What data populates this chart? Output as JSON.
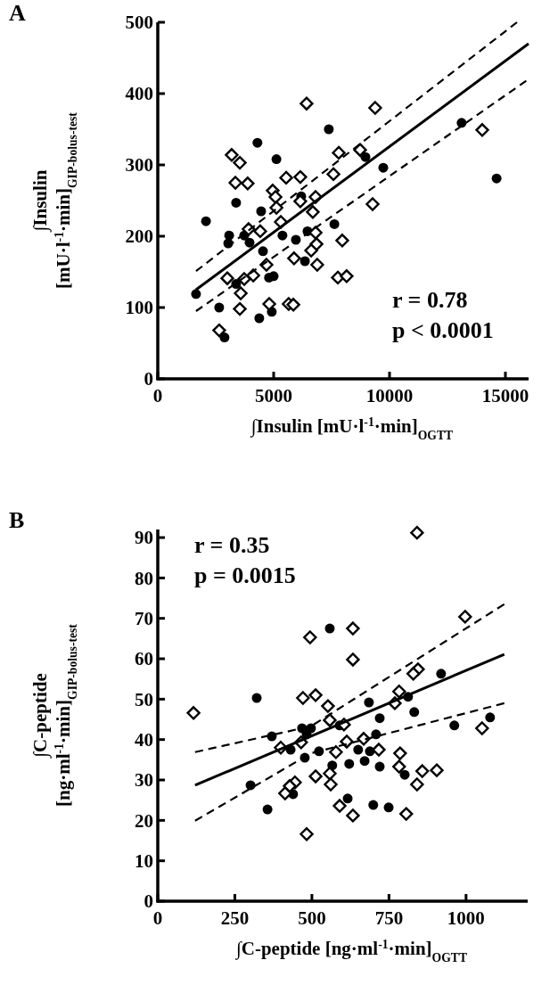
{
  "chart_data": [
    {
      "type": "scatter",
      "title": "A",
      "xlabel": "∫Insulin [mU·l$^{-1}$·min]$_{OGTT}$",
      "ylabel": "∫Insulin\n[mU·l$^{-1}$·min]$_{GIP-bolus-test}$",
      "xlim": [
        0,
        16000
      ],
      "ylim": [
        0,
        500
      ],
      "xticks": [
        0,
        5000,
        10000,
        15000
      ],
      "yticks": [
        0,
        100,
        200,
        300,
        400,
        500
      ],
      "grid": false,
      "annotations": [
        "r = 0.78",
        "p < 0.0001"
      ],
      "series": [
        {
          "marker": "circle",
          "color": "#000000",
          "x": [
            7380,
            4300,
            5120,
            8960,
            9730,
            13110,
            14620,
            3380,
            4460,
            6190,
            2080,
            3080,
            3040,
            3730,
            3960,
            4540,
            5380,
            5960,
            6460,
            7620,
            6350,
            5000,
            4800,
            1650,
            2650,
            4920,
            4380,
            2880,
            3380
          ],
          "values": [
            350,
            331,
            308,
            311,
            296,
            359,
            281,
            247,
            235,
            256,
            221,
            201,
            190,
            201,
            191,
            179,
            201,
            195,
            207,
            217,
            165,
            144,
            142,
            119,
            100,
            94,
            85,
            58,
            133
          ]
        },
        {
          "marker": "diamond",
          "color": "#000000",
          "x": [
            6420,
            9380,
            14000,
            3190,
            3540,
            3350,
            3880,
            5540,
            6150,
            7810,
            8730,
            7580,
            4960,
            5080,
            5120,
            6810,
            6150,
            9270,
            6690,
            5310,
            3920,
            4420,
            6810,
            6850,
            6620,
            7960,
            5880,
            6880,
            4690,
            4120,
            3730,
            3000,
            3580,
            7770,
            8150,
            3540,
            4810,
            5650,
            5850,
            2650
          ],
          "values": [
            386,
            380,
            349,
            314,
            303,
            275,
            274,
            282,
            283,
            317,
            321,
            287,
            264,
            255,
            240,
            255,
            249,
            245,
            234,
            220,
            210,
            207,
            205,
            189,
            180,
            194,
            169,
            160,
            160,
            145,
            140,
            141,
            120,
            142,
            144,
            98,
            105,
            105,
            104,
            68
          ]
        },
        {
          "type": "line",
          "line_style": "solid",
          "color": "#000000",
          "x": [
            1650,
            16000
          ],
          "values": [
            125,
            470
          ]
        },
        {
          "type": "line",
          "line_style": "dashed",
          "color": "#000000",
          "x": [
            1650,
            15500
          ],
          "values": [
            151,
            500
          ]
        },
        {
          "type": "line",
          "line_style": "dashed",
          "color": "#000000",
          "x": [
            1650,
            15900
          ],
          "values": [
            95,
            418
          ]
        }
      ]
    },
    {
      "type": "scatter",
      "title": "B",
      "xlabel": "∫C-peptide [ng·ml$^{-1}$·min]$_{OGTT}$",
      "ylabel": "∫C-peptide\n[ng·ml$^{-1}$·min]$_{GIP-bolus-test}$",
      "xlim": [
        0,
        1200
      ],
      "ylim": [
        0,
        92
      ],
      "xticks": [
        0,
        250,
        500,
        750,
        1000
      ],
      "yticks": [
        0,
        10,
        20,
        30,
        40,
        50,
        60,
        70,
        80,
        90
      ],
      "grid": false,
      "annotations": [
        "r = 0.35",
        "p = 0.0015"
      ],
      "series": [
        {
          "marker": "circle",
          "color": "#000000",
          "x": [
            558,
            321,
            919,
            685,
            812,
            832,
            720,
            962,
            1078,
            468,
            497,
            483,
            590,
            708,
            370,
            431,
            523,
            477,
            650,
            688,
            671,
            621,
            720,
            566,
            801,
            301,
            439,
            616,
            699,
            749,
            356
          ],
          "values": [
            67.5,
            50.3,
            56.3,
            49.2,
            50.6,
            46.8,
            45.3,
            43.5,
            45.5,
            42.8,
            42.8,
            41.3,
            43.5,
            41.3,
            40.8,
            37.5,
            37.1,
            35.5,
            37.5,
            37.1,
            34.7,
            34.0,
            33.3,
            33.6,
            31.3,
            28.7,
            26.5,
            25.4,
            23.8,
            23.2,
            22.7
          ]
        },
        {
          "marker": "diamond",
          "color": "#000000",
          "x": [
            841,
            997,
            494,
            633,
            633,
            844,
            829,
            471,
            512,
            552,
            783,
            769,
            116,
            558,
            604,
            465,
            399,
            613,
            668,
            578,
            717,
            786,
            783,
            858,
            905,
            841,
            512,
            558,
            561,
            445,
            428,
            413,
            590,
            633,
            806,
            483,
            1052
          ],
          "values": [
            91.2,
            70.4,
            65.3,
            67.5,
            59.8,
            57.4,
            56.3,
            50.3,
            51.0,
            48.3,
            51.9,
            49.0,
            46.6,
            44.8,
            43.7,
            39.3,
            38.0,
            39.5,
            40.2,
            36.9,
            37.5,
            36.6,
            33.3,
            32.2,
            32.4,
            28.9,
            30.9,
            31.6,
            28.9,
            29.4,
            28.5,
            26.7,
            23.6,
            21.2,
            21.6,
            16.6,
            42.8
          ]
        },
        {
          "type": "line",
          "line_style": "solid",
          "color": "#000000",
          "x": [
            121,
            1124
          ],
          "values": [
            28.7,
            61.1
          ]
        },
        {
          "type": "line",
          "line_style": "dashed",
          "color": "#000000",
          "x": [
            121,
            497,
            1124
          ],
          "values": [
            36.9,
            43.3,
            73.5
          ]
        },
        {
          "type": "line",
          "line_style": "dashed",
          "color": "#000000",
          "x": [
            121,
            497,
            1124
          ],
          "values": [
            19.9,
            36.6,
            49.0
          ]
        }
      ]
    }
  ]
}
